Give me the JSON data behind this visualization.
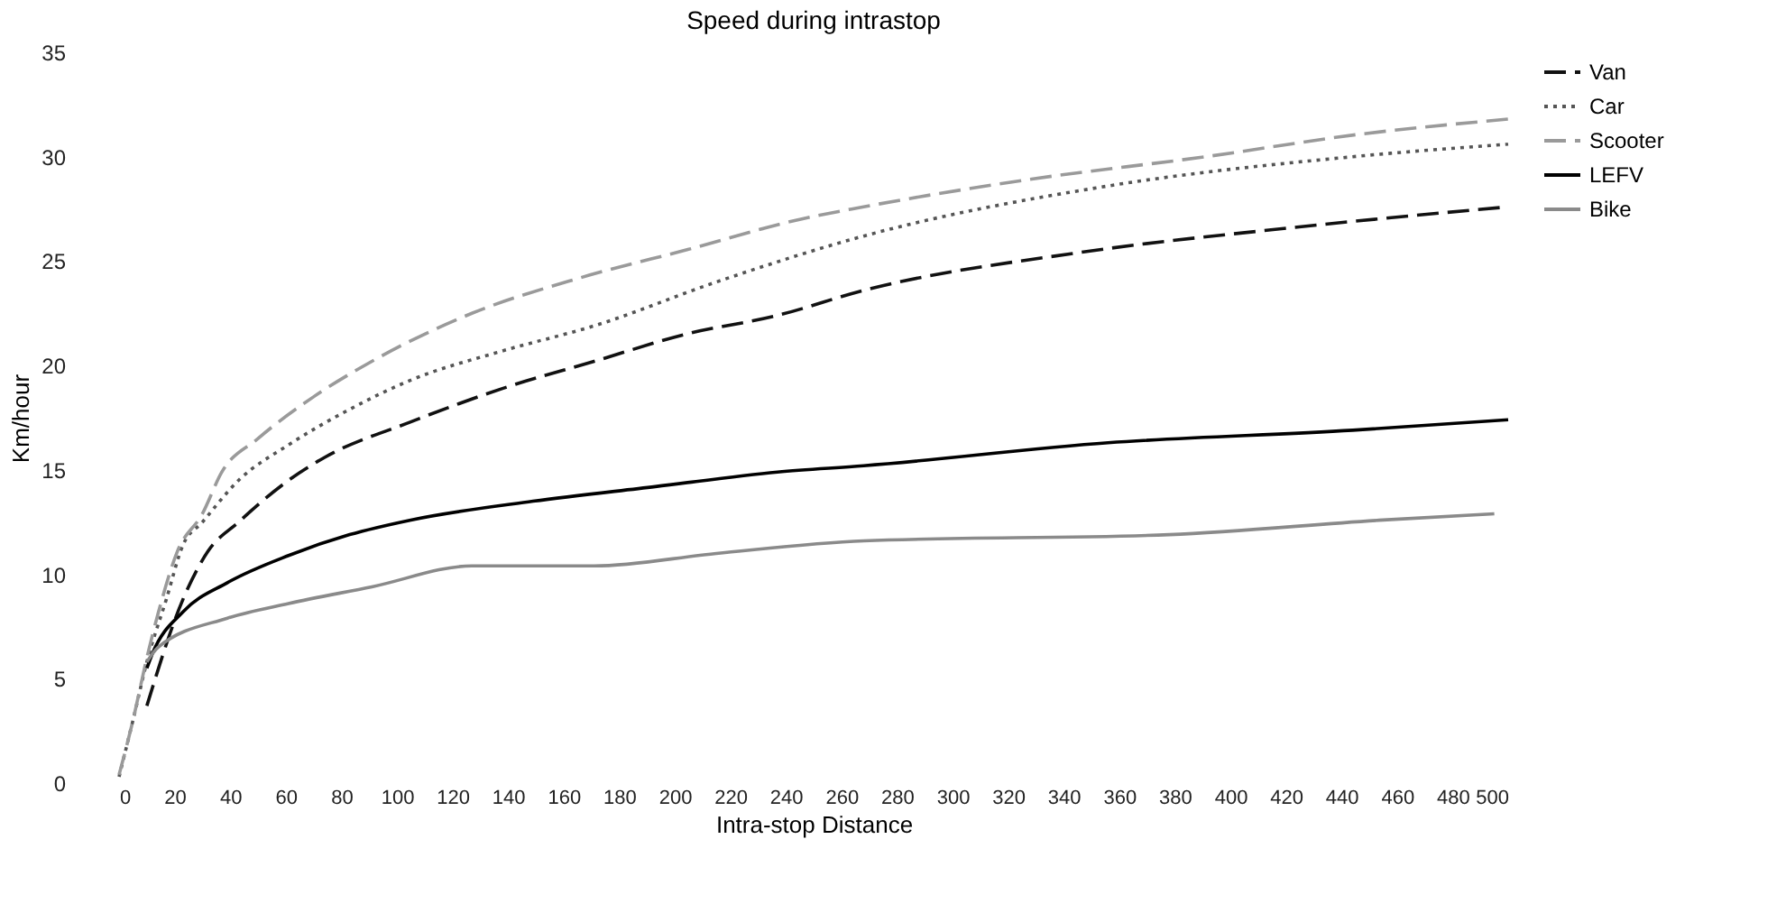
{
  "chart_data": {
    "type": "line",
    "title": "Speed during intrastop",
    "xlabel": "Intra-stop Distance",
    "ylabel": "Km/hour",
    "xlim": [
      0,
      500
    ],
    "xticks": [
      0,
      20,
      40,
      60,
      80,
      100,
      120,
      140,
      160,
      180,
      200,
      220,
      240,
      260,
      280,
      300,
      320,
      340,
      360,
      380,
      400,
      420,
      440,
      460,
      480,
      500
    ],
    "ylim": [
      0,
      35
    ],
    "yticks": [
      0,
      5,
      10,
      15,
      20,
      25,
      30,
      35
    ],
    "grid": false,
    "legend": "right",
    "marker": "none",
    "series": [
      {
        "name": "Van",
        "color": "#111111",
        "line_style": "dashed",
        "x": [
          10,
          23,
          32,
          43,
          61,
          74,
          105,
          138,
          171,
          204,
          237,
          268,
          345,
          422,
          500
        ],
        "values": [
          3.7,
          8.8,
          11.1,
          12.5,
          14.5,
          15.6,
          17.3,
          18.9,
          20.2,
          21.5,
          22.4,
          23.6,
          25.4,
          26.6,
          27.6
        ]
      },
      {
        "name": "Car",
        "color": "#555555",
        "line_style": "dotted",
        "x": [
          0,
          5,
          10,
          17,
          23,
          30,
          43,
          61,
          83,
          105,
          138,
          171,
          215,
          268,
          356,
          444,
          500
        ],
        "values": [
          0.3,
          3,
          5.8,
          8.8,
          11.4,
          12.5,
          14.5,
          16.2,
          17.9,
          19.3,
          20.7,
          21.9,
          24.0,
          26.2,
          28.6,
          30.0,
          30.6
        ]
      },
      {
        "name": "Scooter",
        "color": "#9a9a9a",
        "line_style": "dashed",
        "x": [
          0,
          5,
          10,
          14,
          21,
          30,
          37,
          50,
          70,
          91,
          127,
          166,
          206,
          245,
          268,
          327,
          391,
          448,
          500
        ],
        "values": [
          0.4,
          3,
          6,
          8.1,
          11.1,
          12.9,
          14.9,
          16.5,
          18.5,
          20.2,
          22.5,
          24.2,
          25.6,
          27.0,
          27.6,
          28.9,
          30.0,
          31.1,
          31.8
        ]
      },
      {
        "name": "LEFV",
        "color": "#000000",
        "line_style": "solid",
        "x": [
          10,
          12,
          23,
          39,
          61,
          83,
          105,
          149,
          193,
          237,
          268,
          356,
          444,
          500
        ],
        "values": [
          5.5,
          6.2,
          8.2,
          9.6,
          10.9,
          11.9,
          12.6,
          13.5,
          14.2,
          14.9,
          15.2,
          16.3,
          16.9,
          17.4
        ]
      },
      {
        "name": "Bike",
        "color": "#8a8a8a",
        "line_style": "solid",
        "x": [
          10,
          14,
          39,
          61,
          91,
          127,
          171,
          215,
          268,
          378,
          455,
          495
        ],
        "values": [
          5.8,
          6.5,
          7.9,
          8.6,
          9.4,
          10.4,
          10.4,
          11.0,
          11.6,
          11.9,
          12.6,
          12.9
        ]
      }
    ]
  }
}
